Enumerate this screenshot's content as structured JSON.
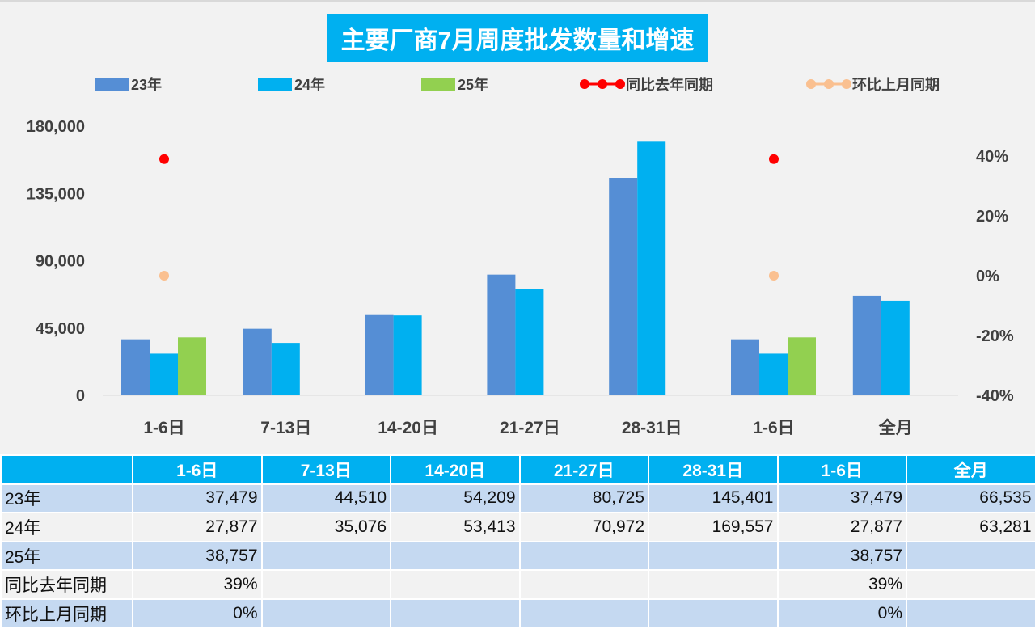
{
  "chart_data": {
    "type": "bar",
    "title": "主要厂商7月周度批发数量和增速",
    "categories": [
      "1-6日",
      "7-13日",
      "14-20日",
      "21-27日",
      "28-31日",
      "1-6日",
      "全月"
    ],
    "series": [
      {
        "name": "23年",
        "type": "bar",
        "color": "#558ed5",
        "values": [
          37479,
          44510,
          54209,
          80725,
          145401,
          37479,
          66535
        ]
      },
      {
        "name": "24年",
        "type": "bar",
        "color": "#00b0f0",
        "values": [
          27877,
          35076,
          53413,
          70972,
          169557,
          27877,
          63281
        ]
      },
      {
        "name": "25年",
        "type": "bar",
        "color": "#92d050",
        "values": [
          38757,
          null,
          null,
          null,
          null,
          38757,
          null
        ]
      },
      {
        "name": "同比去年同期",
        "type": "scatter",
        "axis": "right",
        "color": "#ff0000",
        "values": [
          39,
          null,
          null,
          null,
          null,
          39,
          null
        ]
      },
      {
        "name": "环比上月同期",
        "type": "scatter",
        "axis": "right",
        "color": "#fac090",
        "values": [
          0,
          null,
          null,
          null,
          null,
          0,
          null
        ]
      }
    ],
    "ylim": [
      0,
      180000
    ],
    "yticks": [
      "0",
      "45,000",
      "90,000",
      "135,000",
      "180,000"
    ],
    "y2lim": [
      -40,
      50
    ],
    "y2ticks": [
      "-40%",
      "-20%",
      "0%",
      "20%",
      "40%"
    ],
    "legend": "top"
  },
  "table": {
    "header": [
      "",
      "1-6日",
      "7-13日",
      "14-20日",
      "21-27日",
      "28-31日",
      "1-6日",
      "全月"
    ],
    "rows": [
      [
        "23年",
        "37,479",
        "44,510",
        "54,209",
        "80,725",
        "145,401",
        "37,479",
        "66,535"
      ],
      [
        "24年",
        "27,877",
        "35,076",
        "53,413",
        "70,972",
        "169,557",
        "27,877",
        "63,281"
      ],
      [
        "25年",
        "38,757",
        "",
        "",
        "",
        "",
        "38,757",
        ""
      ],
      [
        "同比去年同期",
        "39%",
        "",
        "",
        "",
        "",
        "39%",
        ""
      ],
      [
        "环比上月同期",
        "0%",
        "",
        "",
        "",
        "",
        "0%",
        ""
      ]
    ]
  }
}
